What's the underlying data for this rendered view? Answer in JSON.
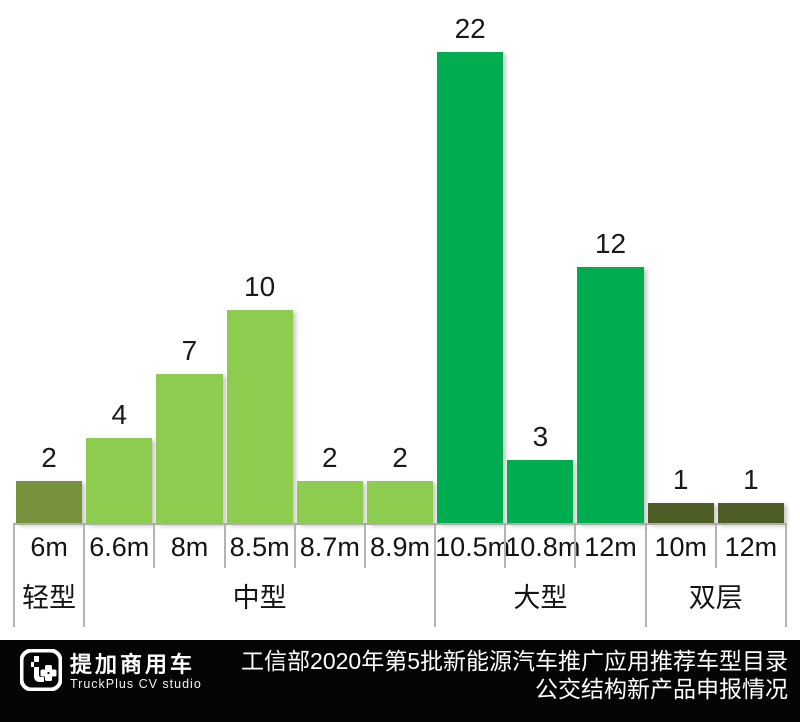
{
  "chart_data": {
    "type": "bar",
    "categories": [
      "6m",
      "6.6m",
      "8m",
      "8.5m",
      "8.7m",
      "8.9m",
      "10.5m",
      "10.8m",
      "12m",
      "10m",
      "12m"
    ],
    "values": [
      2,
      4,
      7,
      10,
      2,
      2,
      22,
      3,
      12,
      1,
      1
    ],
    "groups": [
      {
        "label": "轻型",
        "start": 0,
        "count": 1,
        "color": "#76923C"
      },
      {
        "label": "中型",
        "start": 1,
        "count": 5,
        "color": "#8DCC4E"
      },
      {
        "label": "大型",
        "start": 6,
        "count": 3,
        "color": "#00AC50"
      },
      {
        "label": "双层",
        "start": 9,
        "count": 2,
        "color": "#4E5C26"
      }
    ],
    "ylim": [
      0,
      22
    ],
    "grid": false,
    "data_labels": true,
    "legend": "none",
    "value_label_color": "#1a1a1a",
    "axis_line_color": "#adadad"
  },
  "footer": {
    "title_line1": "工信部2020年第5批新能源汽车推广应用推荐车型目录",
    "title_line2": "公交结构新产品申报情况",
    "brand_name": "提加商用车",
    "brand_subtitle": "TruckPlus CV studio",
    "bg_color": "#050505",
    "text_color": "#ffffff"
  },
  "icons": {
    "brand_logo": "truckplus-t-plus-logo"
  }
}
